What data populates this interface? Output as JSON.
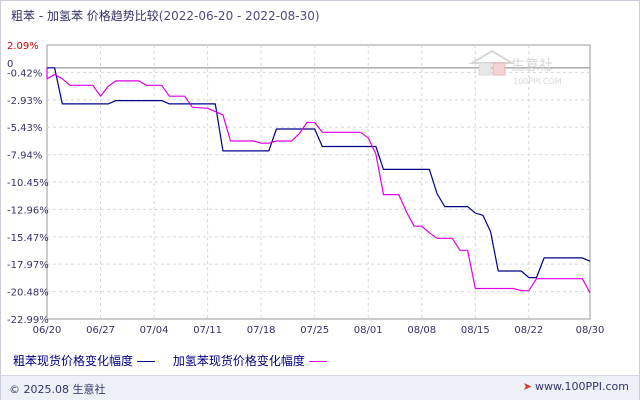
{
  "title": {
    "main": "粗苯 - 加氢苯 价格趋势比较",
    "dates": "(2022-06-20 - 2022-08-30)"
  },
  "watermark": {
    "name": "生意社",
    "url": "100PPI.COM"
  },
  "footer": {
    "copyright": "© 2025.08 生意社",
    "site": "www.100PPI.com"
  },
  "colors": {
    "series_1": "#00008b",
    "series_2": "#e000e0",
    "zero_line": "#808080",
    "grid": "#d8d8d8",
    "background": "#ffffff",
    "axis_top_label": "#cc0000"
  },
  "chart_data": {
    "type": "line",
    "ylim": [
      -22.99,
      2.09
    ],
    "y_ticks": [
      "2.09%",
      "0",
      "-0.42%",
      "-2.93%",
      "-5.43%",
      "-7.94%",
      "-10.45%",
      "-12.96%",
      "-15.47%",
      "-17.97%",
      "-20.48%",
      "-22.99%"
    ],
    "x_ticks": [
      "06/20",
      "06/27",
      "07/04",
      "07/11",
      "07/18",
      "07/25",
      "08/01",
      "08/08",
      "08/15",
      "08/22",
      "08/30"
    ],
    "x_tick_dates": [
      "2022-06-20",
      "2022-06-27",
      "2022-07-04",
      "2022-07-11",
      "2022-07-18",
      "2022-07-25",
      "2022-08-01",
      "2022-08-08",
      "2022-08-15",
      "2022-08-22",
      "2022-08-30"
    ],
    "xlim": [
      "2022-06-20",
      "2022-08-30"
    ],
    "grid": true,
    "legend_position": "bottom",
    "series": [
      {
        "name": "粗苯现货价格变化幅度",
        "color": "#00008b",
        "points": [
          [
            "2022-06-20",
            0.0
          ],
          [
            "2022-06-21",
            0.0
          ],
          [
            "2022-06-22",
            -3.3
          ],
          [
            "2022-06-23",
            -3.3
          ],
          [
            "2022-06-28",
            -3.3
          ],
          [
            "2022-06-29",
            -3.0
          ],
          [
            "2022-07-05",
            -3.0
          ],
          [
            "2022-07-06",
            -3.3
          ],
          [
            "2022-07-11",
            -3.3
          ],
          [
            "2022-07-12",
            -3.3
          ],
          [
            "2022-07-13",
            -7.6
          ],
          [
            "2022-07-14",
            -7.6
          ],
          [
            "2022-07-19",
            -7.6
          ],
          [
            "2022-07-20",
            -5.6
          ],
          [
            "2022-07-21",
            -5.6
          ],
          [
            "2022-07-25",
            -5.6
          ],
          [
            "2022-07-26",
            -7.2
          ],
          [
            "2022-07-27",
            -7.2
          ],
          [
            "2022-08-02",
            -7.2
          ],
          [
            "2022-08-03",
            -9.3
          ],
          [
            "2022-08-04",
            -9.3
          ],
          [
            "2022-08-09",
            -9.3
          ],
          [
            "2022-08-10",
            -11.5
          ],
          [
            "2022-08-11",
            -12.7
          ],
          [
            "2022-08-14",
            -12.7
          ],
          [
            "2022-08-15",
            -13.3
          ],
          [
            "2022-08-16",
            -13.5
          ],
          [
            "2022-08-17",
            -15.0
          ],
          [
            "2022-08-18",
            -18.6
          ],
          [
            "2022-08-19",
            -18.6
          ],
          [
            "2022-08-21",
            -18.6
          ],
          [
            "2022-08-22",
            -19.2
          ],
          [
            "2022-08-23",
            -19.2
          ],
          [
            "2022-08-24",
            -17.4
          ],
          [
            "2022-08-29",
            -17.4
          ],
          [
            "2022-08-30",
            -17.7
          ]
        ]
      },
      {
        "name": "加氢苯现货价格变化幅度",
        "color": "#e000e0",
        "points": [
          [
            "2022-06-20",
            0.0
          ],
          [
            "2022-06-20",
            -1.0
          ],
          [
            "2022-06-21",
            -0.6
          ],
          [
            "2022-06-22",
            -1.0
          ],
          [
            "2022-06-23",
            -1.6
          ],
          [
            "2022-06-26",
            -1.6
          ],
          [
            "2022-06-27",
            -2.6
          ],
          [
            "2022-06-28",
            -1.7
          ],
          [
            "2022-06-29",
            -1.2
          ],
          [
            "2022-07-02",
            -1.2
          ],
          [
            "2022-07-03",
            -1.6
          ],
          [
            "2022-07-05",
            -1.6
          ],
          [
            "2022-07-06",
            -2.6
          ],
          [
            "2022-07-08",
            -2.6
          ],
          [
            "2022-07-09",
            -3.6
          ],
          [
            "2022-07-11",
            -3.7
          ],
          [
            "2022-07-13",
            -4.3
          ],
          [
            "2022-07-14",
            -6.7
          ],
          [
            "2022-07-17",
            -6.7
          ],
          [
            "2022-07-18",
            -6.9
          ],
          [
            "2022-07-19",
            -6.9
          ],
          [
            "2022-07-20",
            -6.7
          ],
          [
            "2022-07-22",
            -6.7
          ],
          [
            "2022-07-23",
            -6.0
          ],
          [
            "2022-07-24",
            -5.0
          ],
          [
            "2022-07-25",
            -5.0
          ],
          [
            "2022-07-26",
            -5.9
          ],
          [
            "2022-07-31",
            -5.9
          ],
          [
            "2022-08-01",
            -6.4
          ],
          [
            "2022-08-02",
            -7.9
          ],
          [
            "2022-08-03",
            -11.6
          ],
          [
            "2022-08-05",
            -11.6
          ],
          [
            "2022-08-06",
            -13.2
          ],
          [
            "2022-08-07",
            -14.5
          ],
          [
            "2022-08-08",
            -14.5
          ],
          [
            "2022-08-09",
            -15.1
          ],
          [
            "2022-08-10",
            -15.6
          ],
          [
            "2022-08-12",
            -15.6
          ],
          [
            "2022-08-13",
            -16.7
          ],
          [
            "2022-08-14",
            -16.7
          ],
          [
            "2022-08-15",
            -20.2
          ],
          [
            "2022-08-20",
            -20.2
          ],
          [
            "2022-08-21",
            -20.4
          ],
          [
            "2022-08-22",
            -20.4
          ],
          [
            "2022-08-23",
            -19.3
          ],
          [
            "2022-08-29",
            -19.3
          ],
          [
            "2022-08-30",
            -20.6
          ]
        ]
      }
    ]
  }
}
